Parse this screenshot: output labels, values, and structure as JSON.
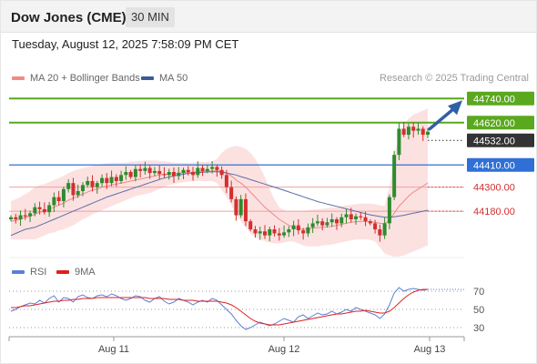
{
  "header": {
    "title": "Dow Jones (CME)",
    "interval": "30 MIN",
    "datetime": "Tuesday, August 12, 2025 7:58:09 PM CET"
  },
  "legend": {
    "ma20": {
      "label": "MA 20 + Bollinger Bands",
      "color": "#f28b82"
    },
    "ma50": {
      "label": "MA 50",
      "color": "#3d5a99"
    }
  },
  "copyright": "Research © 2025 Trading Central",
  "rsi_legend": {
    "rsi": {
      "label": "RSI",
      "color": "#5b7fd6"
    },
    "ma9": {
      "label": "9MA",
      "color": "#e02020"
    }
  },
  "colors": {
    "up": "#2e8b2e",
    "down": "#d32f2f",
    "resistance": "#5aa81e",
    "support": "#f0a0a0",
    "pivot": "#2f6fd6",
    "band_fill": "#fbdcdc",
    "current": "#333333",
    "arrow": "#2f5fa8"
  },
  "chart_data": [
    {
      "type": "candlestick",
      "title": "Dow Jones (CME)",
      "interval": "30 MIN",
      "ylim": [
        43950,
        44800
      ],
      "x_ticks": [
        "Aug 11",
        "Aug 12",
        "Aug 13"
      ],
      "levels": [
        {
          "value": 44740,
          "label": "44740.00",
          "kind": "resistance"
        },
        {
          "value": 44620,
          "label": "44620.00",
          "kind": "resistance"
        },
        {
          "value": 44532,
          "label": "44532.00",
          "kind": "current"
        },
        {
          "value": 44410,
          "label": "44410.00",
          "kind": "pivot"
        },
        {
          "value": 44300,
          "label": "44300.00",
          "kind": "support"
        },
        {
          "value": 44180,
          "label": "44180.00",
          "kind": "support"
        }
      ],
      "closes": [
        44150,
        44140,
        44160,
        44155,
        44170,
        44200,
        44190,
        44175,
        44210,
        44250,
        44230,
        44290,
        44320,
        44260,
        44280,
        44310,
        44330,
        44300,
        44320,
        44345,
        44320,
        44350,
        44330,
        44360,
        44375,
        44350,
        44390,
        44380,
        44395,
        44370,
        44380,
        44365,
        44360,
        44375,
        44355,
        44370,
        44385,
        44375,
        44360,
        44395,
        44380,
        44390,
        44400,
        44385,
        44360,
        44300,
        44240,
        44160,
        44240,
        44130,
        44090,
        44070,
        44080,
        44060,
        44090,
        44070,
        44060,
        44075,
        44090,
        44110,
        44085,
        44070,
        44100,
        44120,
        44130,
        44110,
        44125,
        44140,
        44120,
        44150,
        44165,
        44140,
        44155,
        44150,
        44130,
        44120,
        44090,
        44060,
        44120,
        44250,
        44460,
        44590,
        44560,
        44600,
        44580,
        44590,
        44560,
        44575
      ],
      "bollinger": {
        "ma20": [
          44130,
          44135,
          44140,
          44150,
          44155,
          44165,
          44175,
          44180,
          44190,
          44200,
          44210,
          44220,
          44235,
          44245,
          44255,
          44265,
          44275,
          44285,
          44290,
          44300,
          44305,
          44310,
          44315,
          44320,
          44325,
          44330,
          44335,
          44340,
          44345,
          44350,
          44355,
          44360,
          44362,
          44365,
          44367,
          44370,
          44372,
          44373,
          44374,
          44376,
          44378,
          44379,
          44380,
          44381,
          44378,
          44370,
          44355,
          44335,
          44320,
          44300,
          44275,
          44250,
          44225,
          44200,
          44180,
          44160,
          44140,
          44125,
          44110,
          44100,
          44095,
          44090,
          44092,
          44095,
          44098,
          44100,
          44102,
          44105,
          44110,
          44115,
          44120,
          44125,
          44128,
          44130,
          44130,
          44128,
          44125,
          44120,
          44118,
          44135,
          44170,
          44205,
          44230,
          44255,
          44275,
          44290,
          44305,
          44320
        ],
        "upper": [
          44230,
          44240,
          44250,
          44265,
          44280,
          44300,
          44310,
          44315,
          44325,
          44335,
          44345,
          44355,
          44370,
          44380,
          44388,
          44395,
          44400,
          44405,
          44410,
          44415,
          44418,
          44420,
          44420,
          44420,
          44422,
          44425,
          44428,
          44430,
          44432,
          44433,
          44432,
          44430,
          44428,
          44425,
          44422,
          44420,
          44420,
          44420,
          44420,
          44425,
          44425,
          44425,
          44428,
          44440,
          44470,
          44490,
          44500,
          44505,
          44500,
          44490,
          44470,
          44440,
          44400,
          44350,
          44290,
          44240,
          44200,
          44185,
          44180,
          44180,
          44180,
          44182,
          44185,
          44188,
          44190,
          44192,
          44195,
          44198,
          44200,
          44205,
          44210,
          44212,
          44215,
          44217,
          44218,
          44218,
          44215,
          44210,
          44205,
          44300,
          44450,
          44560,
          44610,
          44640,
          44660,
          44670,
          44680,
          44690
        ],
        "lower": [
          44040,
          44040,
          44040,
          44040,
          44040,
          44040,
          44050,
          44060,
          44070,
          44075,
          44085,
          44090,
          44100,
          44110,
          44125,
          44140,
          44150,
          44165,
          44175,
          44185,
          44195,
          44205,
          44215,
          44225,
          44235,
          44245,
          44255,
          44260,
          44265,
          44270,
          44280,
          44290,
          44300,
          44310,
          44315,
          44320,
          44325,
          44328,
          44330,
          44330,
          44330,
          44330,
          44330,
          44320,
          44285,
          44250,
          44210,
          44165,
          44130,
          44100,
          44070,
          44050,
          44040,
          44030,
          44025,
          44020,
          44020,
          44025,
          44030,
          44030,
          44020,
          44010,
          44005,
          44005,
          44005,
          44010,
          44012,
          44015,
          44020,
          44025,
          44030,
          44035,
          44040,
          44040,
          44040,
          44038,
          44030,
          44000,
          43970,
          43960,
          43955,
          43955,
          43960,
          43970,
          43980,
          43990,
          44000,
          44010
        ]
      },
      "ma50": [
        44060,
        44070,
        44080,
        44090,
        44095,
        44100,
        44110,
        44120,
        44130,
        44140,
        44150,
        44160,
        44170,
        44180,
        44190,
        44200,
        44210,
        44220,
        44230,
        44240,
        44250,
        44258,
        44266,
        44274,
        44282,
        44290,
        44298,
        44306,
        44314,
        44322,
        44330,
        44338,
        44345,
        44350,
        44355,
        44360,
        44364,
        44368,
        44370,
        44372,
        44374,
        44375,
        44376,
        44376,
        44374,
        44370,
        44365,
        44360,
        44352,
        44345,
        44337,
        44330,
        44322,
        44315,
        44307,
        44300,
        44292,
        44284,
        44276,
        44268,
        44260,
        44252,
        44244,
        44236,
        44228,
        44222,
        44216,
        44210,
        44204,
        44198,
        44192,
        44186,
        44180,
        44174,
        44168,
        44162,
        44158,
        44154,
        44150,
        44150,
        44152,
        44156,
        44160,
        44165,
        44170,
        44175,
        44180,
        44185
      ]
    },
    {
      "type": "line",
      "title": "RSI",
      "y_ticks": [
        70,
        50,
        30
      ],
      "ylim": [
        20,
        80
      ],
      "series": [
        {
          "name": "RSI",
          "values": [
            48,
            50,
            53,
            55,
            57,
            56,
            60,
            57,
            62,
            65,
            58,
            63,
            62,
            58,
            64,
            66,
            63,
            62,
            65,
            66,
            64,
            67,
            65,
            62,
            60,
            62,
            65,
            64,
            60,
            58,
            62,
            64,
            59,
            56,
            58,
            62,
            60,
            58,
            55,
            58,
            60,
            58,
            62,
            60,
            55,
            50,
            45,
            38,
            32,
            28,
            30,
            33,
            36,
            34,
            32,
            34,
            37,
            40,
            38,
            36,
            42,
            44,
            40,
            43,
            46,
            44,
            45,
            48,
            45,
            47,
            50,
            48,
            52,
            50,
            48,
            46,
            44,
            40,
            45,
            55,
            68,
            74,
            70,
            72,
            73,
            72,
            71,
            72
          ]
        },
        {
          "name": "9MA",
          "values": [
            52,
            52,
            53,
            54,
            54,
            55,
            56,
            57,
            58,
            59,
            59,
            60,
            60,
            61,
            61,
            62,
            62,
            62,
            63,
            63,
            63,
            63,
            63,
            63,
            63,
            63,
            63,
            63,
            63,
            62,
            62,
            62,
            62,
            61,
            61,
            61,
            60,
            60,
            60,
            59,
            59,
            59,
            59,
            59,
            58,
            57,
            55,
            52,
            48,
            44,
            40,
            37,
            35,
            34,
            33,
            33,
            33,
            34,
            35,
            36,
            37,
            38,
            39,
            40,
            41,
            42,
            43,
            44,
            45,
            45,
            46,
            47,
            48,
            48,
            49,
            48,
            47,
            46,
            46,
            48,
            52,
            57,
            62,
            66,
            69,
            71,
            72,
            72
          ]
        }
      ]
    }
  ]
}
